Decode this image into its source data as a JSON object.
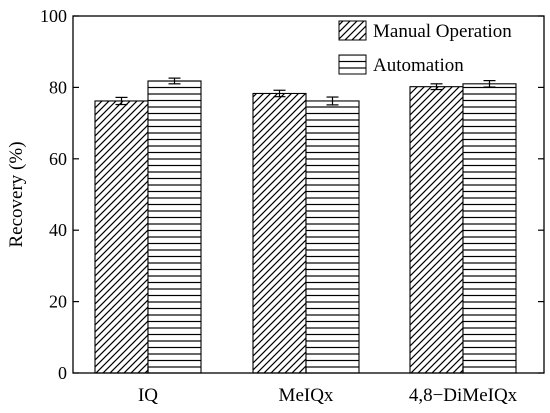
{
  "chart_data": {
    "type": "bar",
    "title": "",
    "xlabel": "",
    "ylabel": "Recovery (%)",
    "ylim": [
      0,
      100
    ],
    "yticks": [
      0,
      20,
      40,
      60,
      80,
      100
    ],
    "categories": [
      "IQ",
      "MeIQx",
      "4,8−DiMeIQx"
    ],
    "series": [
      {
        "name": "Manual Operation",
        "pattern": "diagonal-hatch",
        "values": [
          76.2,
          78.3,
          80.2
        ],
        "errors": [
          1.0,
          0.9,
          0.8
        ]
      },
      {
        "name": "Automation",
        "pattern": "horizontal-hatch",
        "values": [
          81.8,
          76.2,
          81.0
        ],
        "errors": [
          0.8,
          1.1,
          0.9
        ]
      }
    ],
    "legend": "top-right",
    "grid": false
  },
  "colors": {
    "stroke": "#000000",
    "background": "#ffffff"
  }
}
